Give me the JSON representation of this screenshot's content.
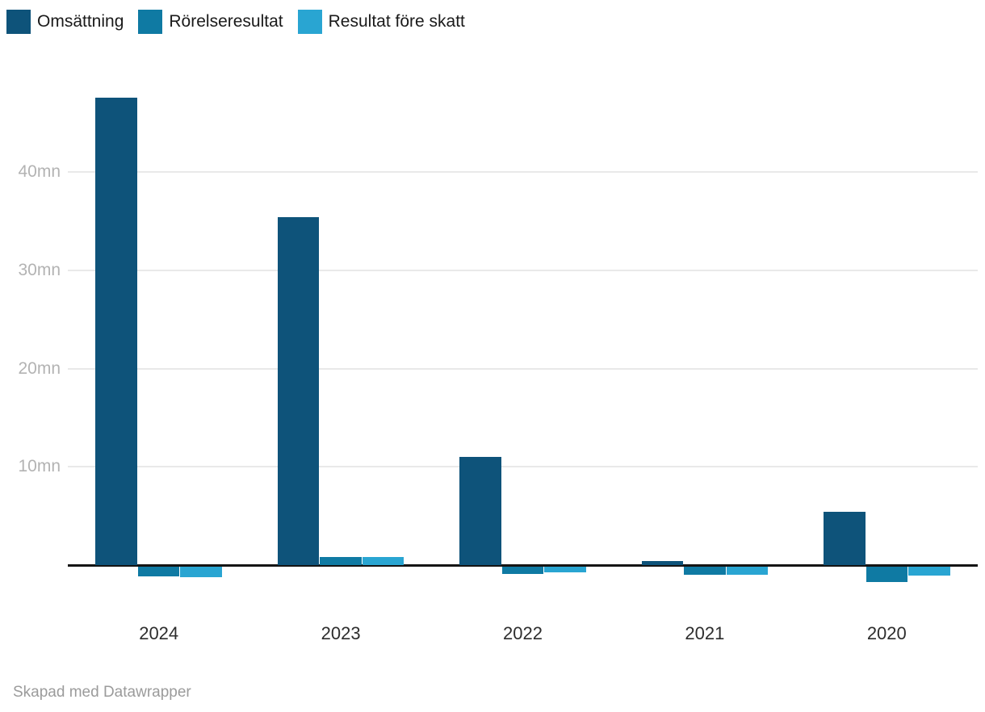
{
  "chart_data": {
    "type": "bar",
    "title": "",
    "categories": [
      "2024",
      "2023",
      "2022",
      "2021",
      "2020"
    ],
    "series": [
      {
        "id": "omsattning",
        "name": "Omsättning",
        "color": "#0e537a",
        "values": [
          47.6,
          35.4,
          11.0,
          0.4,
          5.4
        ]
      },
      {
        "id": "rorelseresultat",
        "name": "Rörelseresultat",
        "color": "#0f7aa3",
        "values": [
          -1.0,
          0.8,
          -0.7,
          -0.8,
          -1.6
        ]
      },
      {
        "id": "resultat-fore-skatt",
        "name": "Resultat före skatt",
        "color": "#29a5d2",
        "values": [
          -1.1,
          0.8,
          -0.6,
          -0.8,
          -0.9
        ]
      }
    ],
    "y_ticks": [
      {
        "value": 10,
        "label": "10mn"
      },
      {
        "value": 20,
        "label": "20mn"
      },
      {
        "value": 30,
        "label": "30mn"
      },
      {
        "value": 40,
        "label": "40mn"
      }
    ],
    "unit": "mn",
    "ylim": [
      -2.5,
      50.2
    ],
    "grid": "horizontal",
    "legend_position": "top-left",
    "xlabel": "",
    "ylabel": ""
  },
  "footer": {
    "credit": "Skapad med Datawrapper"
  },
  "colors": {
    "background": "#ffffff",
    "grid": "#e9e9e9",
    "axis": "#141414",
    "tick_label": "#b3b3b3",
    "category_label": "#2d2d2d",
    "legend_text": "#1a1a1a",
    "footer_text": "#9b9b9b"
  }
}
